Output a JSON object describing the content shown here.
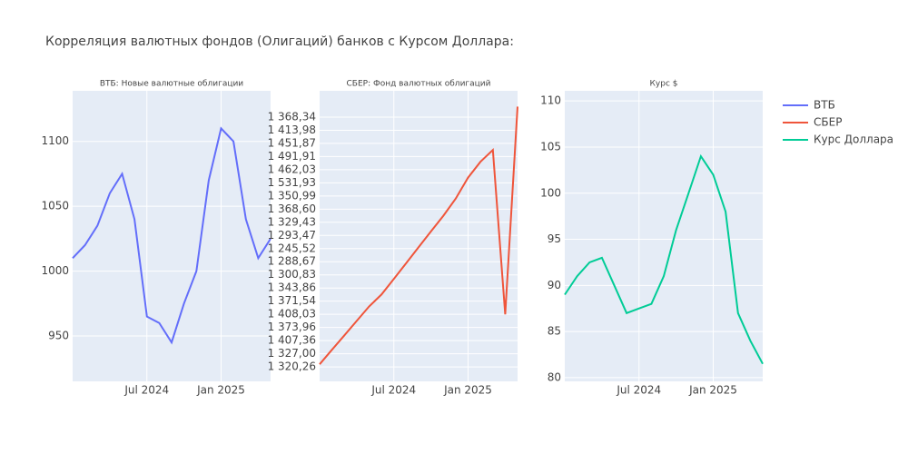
{
  "title": "Корреляция валютных фондов (Олигаций) банков с Курсом Доллара:",
  "chart_data": [
    {
      "type": "line",
      "title": "ВТБ: Новые валютные облигации",
      "x": [
        "2024-01",
        "2024-02",
        "2024-03",
        "2024-04",
        "2024-05",
        "2024-06",
        "2024-07",
        "2024-08",
        "2024-09",
        "2024-10",
        "2024-11",
        "2024-12",
        "2025-01",
        "2025-02",
        "2025-03",
        "2025-04",
        "2025-05"
      ],
      "series": [
        {
          "name": "ВТБ",
          "color": "#636efa",
          "values": [
            1010,
            1020,
            1035,
            1060,
            1075,
            1040,
            965,
            960,
            945,
            975,
            1000,
            1070,
            1110,
            1100,
            1040,
            1010,
            1025
          ]
        }
      ],
      "xlim": [
        "2024-01",
        "2025-05"
      ],
      "xticks": [
        {
          "value": "2024-07",
          "label": "Jul 2024"
        },
        {
          "value": "2025-01",
          "label": "Jan 2025"
        }
      ],
      "ylim": [
        915,
        1139
      ],
      "yticks": [
        950,
        1000,
        1050,
        1100
      ],
      "grid": true
    },
    {
      "type": "line",
      "title": "СБЕР: Фонд валютных облигаций",
      "x": [
        "2024-01",
        "2024-02",
        "2024-03",
        "2024-04",
        "2024-05",
        "2024-06",
        "2024-07",
        "2024-08",
        "2024-09",
        "2024-10",
        "2024-11",
        "2024-12",
        "2025-01",
        "2025-02",
        "2025-03",
        "2025-04",
        "2025-05"
      ],
      "series": [
        {
          "name": "СБЕР",
          "color": "#EF553B",
          "values": [
            0.2,
            1.3,
            2.4,
            3.5,
            4.6,
            5.5,
            6.7,
            7.9,
            9.1,
            10.3,
            11.5,
            12.8,
            14.4,
            15.6,
            16.5,
            4.0,
            19.8
          ]
        }
      ],
      "xlim": [
        "2024-01",
        "2025-05"
      ],
      "xticks": [
        {
          "value": "2024-07",
          "label": "Jul 2024"
        },
        {
          "value": "2025-01",
          "label": "Jan 2025"
        }
      ],
      "ylim": [
        -1.1,
        21
      ],
      "yticks": [
        {
          "value": 0,
          "label": "1 320,26"
        },
        {
          "value": 1,
          "label": "1 327,00"
        },
        {
          "value": 2,
          "label": "1 407,36"
        },
        {
          "value": 3,
          "label": "1 373,96"
        },
        {
          "value": 4,
          "label": "1 408,03"
        },
        {
          "value": 5,
          "label": "1 371,54"
        },
        {
          "value": 6,
          "label": "1 343,86"
        },
        {
          "value": 7,
          "label": "1 300,83"
        },
        {
          "value": 8,
          "label": "1 288,67"
        },
        {
          "value": 9,
          "label": "1 245,52"
        },
        {
          "value": 10,
          "label": "1 293,47"
        },
        {
          "value": 11,
          "label": "1 329,43"
        },
        {
          "value": 12,
          "label": "1 368,60"
        },
        {
          "value": 13,
          "label": "1 350,99"
        },
        {
          "value": 14,
          "label": "1 531,93"
        },
        {
          "value": 15,
          "label": "1 462,03"
        },
        {
          "value": 16,
          "label": "1 491,91"
        },
        {
          "value": 17,
          "label": "1 451,87"
        },
        {
          "value": 18,
          "label": "1 413,98"
        },
        {
          "value": 19,
          "label": "1 368,34"
        }
      ],
      "grid": true
    },
    {
      "type": "line",
      "title": "Курс $",
      "x": [
        "2024-01",
        "2024-02",
        "2024-03",
        "2024-04",
        "2024-05",
        "2024-06",
        "2024-07",
        "2024-08",
        "2024-09",
        "2024-10",
        "2024-11",
        "2024-12",
        "2025-01",
        "2025-02",
        "2025-03",
        "2025-04",
        "2025-05"
      ],
      "series": [
        {
          "name": "Курс Доллара",
          "color": "#00cc96",
          "values": [
            89,
            91,
            92.5,
            93,
            90,
            87,
            87.5,
            88,
            91,
            96,
            100,
            104,
            102,
            98,
            87,
            84,
            81.5
          ]
        }
      ],
      "xlim": [
        "2024-01",
        "2025-05"
      ],
      "xticks": [
        {
          "value": "2024-07",
          "label": "Jul 2024"
        },
        {
          "value": "2025-01",
          "label": "Jan 2025"
        }
      ],
      "ylim": [
        79.6,
        111.1
      ],
      "yticks": [
        80,
        85,
        90,
        95,
        100,
        105,
        110
      ],
      "grid": true
    }
  ]
}
